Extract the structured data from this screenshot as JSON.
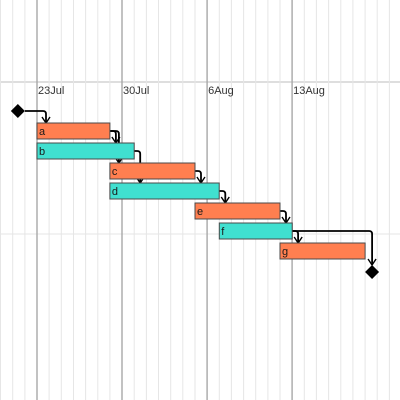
{
  "chart_data": {
    "type": "gantt",
    "title": "",
    "x_axis": {
      "type": "date",
      "range": [
        "2023-07-18",
        "2023-08-22"
      ],
      "tick_labels": [
        "23Jul",
        "30Jul",
        "6Aug",
        "13Aug"
      ],
      "tick_dates": [
        "2023-07-23",
        "2023-07-30",
        "2023-08-06",
        "2023-08-13"
      ],
      "minor_grid": "daily",
      "major_grid": "weekly"
    },
    "tasks": [
      {
        "id": "a",
        "label": "a",
        "start": "2023-07-23",
        "end": "2023-07-29",
        "color": "#FF7F50"
      },
      {
        "id": "b",
        "label": "b",
        "start": "2023-07-23",
        "end": "2023-07-31",
        "color": "#40E0D0"
      },
      {
        "id": "c",
        "label": "c",
        "start": "2023-07-29",
        "end": "2023-08-05",
        "color": "#FF7F50"
      },
      {
        "id": "d",
        "label": "d",
        "start": "2023-07-29",
        "end": "2023-08-07",
        "color": "#40E0D0"
      },
      {
        "id": "e",
        "label": "e",
        "start": "2023-08-05",
        "end": "2023-08-12",
        "color": "#FF7F50"
      },
      {
        "id": "f",
        "label": "f",
        "start": "2023-08-07",
        "end": "2023-08-13",
        "color": "#40E0D0"
      },
      {
        "id": "g",
        "label": "g",
        "start": "2023-08-12",
        "end": "2023-08-19",
        "color": "#FF7F50"
      }
    ],
    "milestones": [
      {
        "id": "start",
        "date": "2023-07-22"
      },
      {
        "id": "end",
        "date": "2023-08-19"
      }
    ],
    "dependencies": [
      {
        "from": "start",
        "to": "a"
      },
      {
        "from": "a",
        "to": "b"
      },
      {
        "from": "a",
        "to": "c"
      },
      {
        "from": "b",
        "to": "d"
      },
      {
        "from": "c",
        "to": "d"
      },
      {
        "from": "d",
        "to": "e"
      },
      {
        "from": "e",
        "to": "f"
      },
      {
        "from": "f",
        "to": "g"
      },
      {
        "from": "f",
        "to": "end"
      }
    ],
    "grid": true,
    "legend": "none"
  }
}
